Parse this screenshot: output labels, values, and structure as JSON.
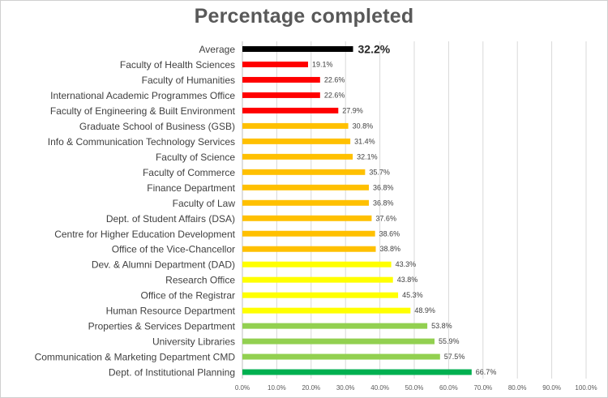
{
  "chart_data": {
    "type": "bar",
    "orientation": "horizontal",
    "title": "Percentage completed",
    "xlabel": "",
    "ylabel": "",
    "xlim": [
      0,
      100
    ],
    "grid": true,
    "legend": "none",
    "x_tick_labels": [
      "0.0%",
      "10.0%",
      "20.0%",
      "30.0%",
      "40.0%",
      "50.0%",
      "60.0%",
      "70.0%",
      "80.0%",
      "90.0%",
      "100.0%"
    ],
    "categories": [
      "Average",
      "Faculty of Health Sciences",
      "Faculty of Humanities",
      "International Academic Programmes Office",
      "Faculty of Engineering & Built Environment",
      "Graduate School of Business (GSB)",
      "Info & Communication Technology Services",
      "Faculty of Science",
      "Faculty of Commerce",
      "Finance Department",
      "Faculty of Law",
      "Dept. of Student Affairs (DSA)",
      "Centre for Higher Education Development",
      "Office of the Vice-Chancellor",
      "Dev. & Alumni Department (DAD)",
      "Research Office",
      "Office of the Registrar",
      "Human Resource Department",
      "Properties & Services Department",
      "University Libraries",
      "Communication & Marketing Department CMD",
      "Dept. of Institutional Planning"
    ],
    "values": [
      32.2,
      19.1,
      22.6,
      22.6,
      27.9,
      30.8,
      31.4,
      32.1,
      35.7,
      36.8,
      36.8,
      37.6,
      38.6,
      38.8,
      43.3,
      43.8,
      45.3,
      48.9,
      53.8,
      55.9,
      57.5,
      66.7
    ],
    "value_labels": [
      "32.2%",
      "19.1%",
      "22.6%",
      "22.6%",
      "27.9%",
      "30.8%",
      "31.4%",
      "32.1%",
      "35.7%",
      "36.8%",
      "36.8%",
      "37.6%",
      "38.6%",
      "38.8%",
      "43.3%",
      "43.8%",
      "45.3%",
      "48.9%",
      "53.8%",
      "55.9%",
      "57.5%",
      "66.7%"
    ],
    "colors": [
      "#000000",
      "#ff0000",
      "#ff0000",
      "#ff0000",
      "#ff0000",
      "#ffc000",
      "#ffc000",
      "#ffc000",
      "#ffc000",
      "#ffc000",
      "#ffc000",
      "#ffc000",
      "#ffc000",
      "#ffc000",
      "#ffff00",
      "#ffff00",
      "#ffff00",
      "#ffff00",
      "#92d050",
      "#92d050",
      "#92d050",
      "#00b050"
    ]
  }
}
